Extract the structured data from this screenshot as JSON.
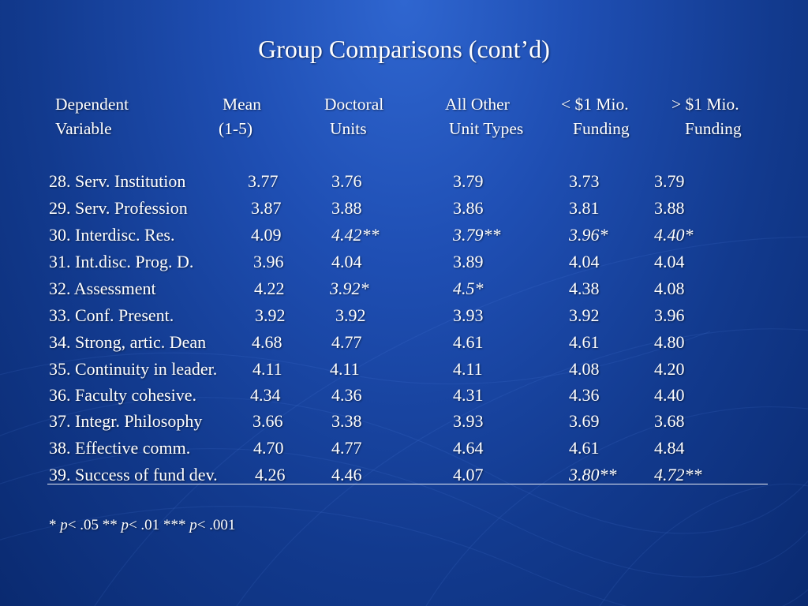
{
  "title": "Group Comparisons (cont’d)",
  "columns": [
    {
      "line1": "Dependent",
      "line2": "Variable"
    },
    {
      "line1": "Mean",
      "line2": "(1-5)"
    },
    {
      "line1": "Doctoral",
      "line2": "Units"
    },
    {
      "line1": "All Other",
      "line2": "Unit Types"
    },
    {
      "line1": "< $1 Mio.",
      "line2": "Funding"
    },
    {
      "line1": "> $1 Mio.",
      "line2": "Funding"
    }
  ],
  "rows": [
    {
      "label": "28.  Serv. Institution",
      "mean": "3.77",
      "doctoral": "3.76",
      "other": "3.79",
      "under": "3.73",
      "over": "3.79"
    },
    {
      "label": "29.  Serv. Profession",
      "mean": "3.87",
      "doctoral": "3.88",
      "other": "3.86",
      "under": "3.81",
      "over": "3.88"
    },
    {
      "label": "30.  Interdisc. Res.",
      "mean": "4.09",
      "doctoral": "4.42**",
      "other": "3.79**",
      "under": "3.96*",
      "over": "4.40*"
    },
    {
      "label": "31. Int.disc. Prog. D.",
      "mean": "3.96",
      "doctoral": "4.04",
      "other": "3.89",
      "under": "4.04",
      "over": "4.04"
    },
    {
      "label": "32. Assessment",
      "mean": "4.22",
      "doctoral": "3.92*",
      "other": "4.5*",
      "under": "4.38",
      "over": "4.08"
    },
    {
      "label": "33. Conf. Present.",
      "mean": "3.92",
      "doctoral": "3.92",
      "other": "3.93",
      "under": "3.92",
      "over": "3.96"
    },
    {
      "label": "34. Strong, artic. Dean",
      "mean": "4.68",
      "doctoral": "4.77",
      "other": "4.61",
      "under": "4.61",
      "over": "4.80"
    },
    {
      "label": "35. Continuity in leader.",
      "mean": "4.11",
      "doctoral": "4.11",
      "other": "4.11",
      "under": "4.08",
      "over": "4.20"
    },
    {
      "label": "36. Faculty cohesive.",
      "mean": "4.34",
      "doctoral": "4.36",
      "other": "4.31",
      "under": "4.36",
      "over": "4.40"
    },
    {
      "label": "37. Integr. Philosophy",
      "mean": "3.66",
      "doctoral": "3.38",
      "other": "3.93",
      "under": "3.69",
      "over": "3.68"
    },
    {
      "label": "38. Effective comm.",
      "mean": "4.70",
      "doctoral": "4.77",
      "other": "4.64",
      "under": "4.61",
      "over": "4.84"
    },
    {
      "label": "39. Success of fund dev.",
      "mean": "4.26",
      "doctoral": "4.46",
      "other": "4.07",
      "under": "3.80**",
      "over": "4.72**"
    }
  ],
  "footnote": {
    "p_letter": "p",
    "s1_marker": "* ",
    "s1_rest": "< .05 ",
    "s2_marker": "** ",
    "s2_rest": "< .01 ",
    "s3_marker": "*** ",
    "s3_rest": "< .001"
  }
}
